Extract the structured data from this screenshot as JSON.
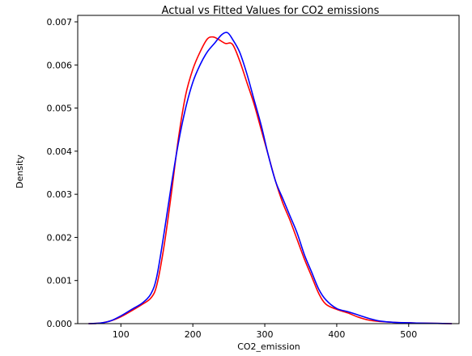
{
  "chart_data": {
    "type": "line",
    "title": "Actual vs Fitted Values for CO2 emissions",
    "xlabel": "CO2_emission",
    "ylabel": "Density",
    "xlim": [
      40,
      570
    ],
    "ylim": [
      0,
      0.00715
    ],
    "xticks": [
      100,
      200,
      300,
      400,
      500
    ],
    "yticks": [
      0.0,
      0.001,
      0.002,
      0.003,
      0.004,
      0.005,
      0.006,
      0.007
    ],
    "ytick_labels": [
      "0.000",
      "0.001",
      "0.002",
      "0.003",
      "0.004",
      "0.005",
      "0.006",
      "0.007"
    ],
    "grid": false,
    "legend": "none",
    "series": [
      {
        "color": "#ff0000",
        "x": [
          55,
          70,
          85,
          100,
          115,
          130,
          142,
          150,
          160,
          170,
          180,
          190,
          200,
          210,
          220,
          228,
          235,
          245,
          255,
          265,
          275,
          285,
          295,
          305,
          315,
          325,
          335,
          345,
          355,
          365,
          375,
          385,
          400,
          415,
          430,
          445,
          460,
          480,
          500,
          520,
          540,
          560
        ],
        "y": [
          0.0,
          1e-05,
          6e-05,
          0.00016,
          0.0003,
          0.00045,
          0.0006,
          0.0009,
          0.0018,
          0.003,
          0.0043,
          0.0053,
          0.0059,
          0.0063,
          0.0066,
          0.00665,
          0.0066,
          0.0065,
          0.00648,
          0.0061,
          0.0056,
          0.0051,
          0.0045,
          0.0039,
          0.0033,
          0.0028,
          0.0024,
          0.00195,
          0.0015,
          0.0011,
          0.0007,
          0.00045,
          0.00033,
          0.00025,
          0.00015,
          8e-05,
          5e-05,
          3e-05,
          2e-05,
          1e-05,
          5e-06,
          0.0
        ]
      },
      {
        "color": "#0000ff",
        "x": [
          55,
          70,
          85,
          100,
          115,
          130,
          142,
          150,
          160,
          170,
          180,
          190,
          200,
          210,
          220,
          230,
          240,
          248,
          255,
          265,
          275,
          285,
          295,
          305,
          315,
          325,
          335,
          345,
          355,
          365,
          375,
          385,
          400,
          415,
          430,
          445,
          460,
          480,
          500,
          520,
          540,
          560
        ],
        "y": [
          0.0,
          1e-05,
          6e-05,
          0.00018,
          0.00033,
          0.00048,
          0.0007,
          0.0011,
          0.0021,
          0.0032,
          0.0042,
          0.005,
          0.0056,
          0.006,
          0.0063,
          0.0065,
          0.0067,
          0.00675,
          0.0066,
          0.0063,
          0.0058,
          0.0052,
          0.0046,
          0.0039,
          0.0033,
          0.0029,
          0.0025,
          0.0021,
          0.0016,
          0.0012,
          0.0008,
          0.00055,
          0.00035,
          0.00028,
          0.0002,
          0.00012,
          6e-05,
          3e-05,
          2e-05,
          1e-05,
          5e-06,
          0.0
        ]
      }
    ]
  }
}
